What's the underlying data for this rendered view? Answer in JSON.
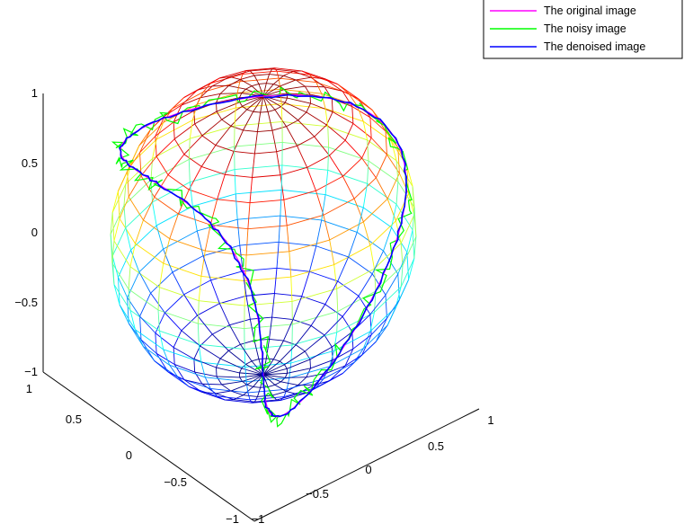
{
  "chart_data": {
    "type": "line",
    "title": "",
    "xlabel": "",
    "ylabel": "",
    "zlabel": "",
    "xlim": [
      -1,
      1
    ],
    "ylim": [
      -1,
      1
    ],
    "zlim": [
      -1,
      1
    ],
    "grid": false,
    "legend_placement": "top-right",
    "x_ticks": [
      "-1",
      "-0.5",
      "0",
      "0.5",
      "1"
    ],
    "y_ticks": [
      "-1",
      "-0.5",
      "0",
      "0.5",
      "1"
    ],
    "z_ticks": [
      "-1",
      "-0.5",
      "0",
      "0.5",
      "1"
    ],
    "surface": {
      "type": "sphere-wireframe",
      "radius": 1,
      "colormap": "jet",
      "latitude_lines": 20,
      "longitude_lines": 20
    },
    "curve": {
      "description_param": "t from 0 to 2pi",
      "x": "sin(t)",
      "y": "sin(2t)/2",
      "z": "cos(t)"
    },
    "series": [
      {
        "name": "The original image",
        "color": "#ff00ff",
        "noise": 0
      },
      {
        "name": "The noisy image",
        "color": "#00ff00",
        "noise": 0.05
      },
      {
        "name": "The denoised image",
        "color": "#0000ff",
        "noise": 0.008
      }
    ]
  }
}
